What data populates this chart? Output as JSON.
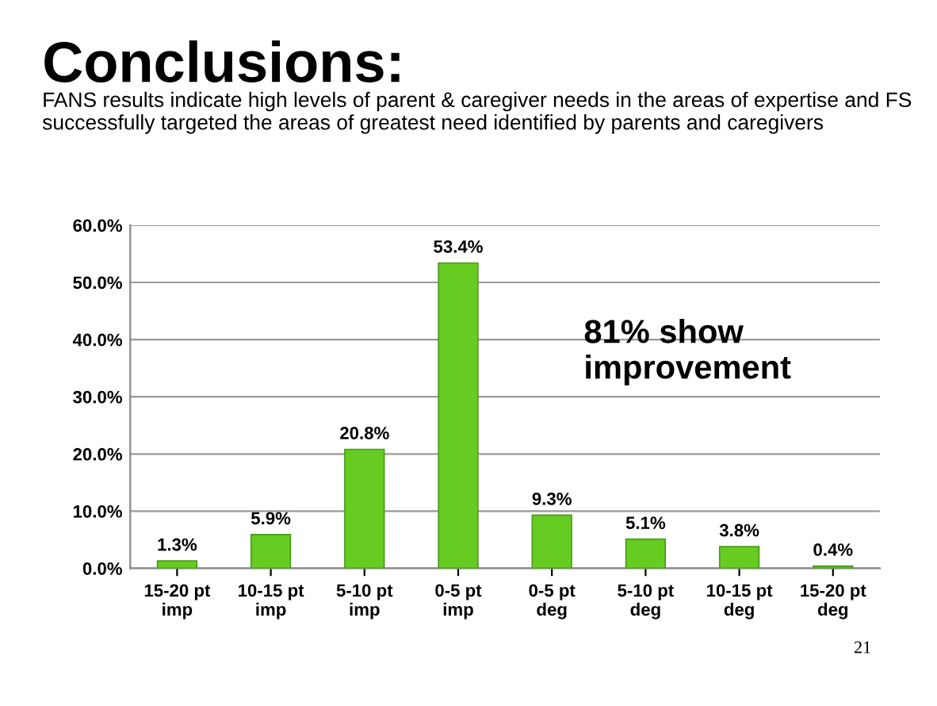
{
  "chart_data": {
    "type": "bar",
    "title": "Conclusions:",
    "subtitle": "FANS results indicate high levels of parent & caregiver needs in the areas of expertise and FS successfully targeted the areas of greatest need identified by parents and caregivers",
    "categories": [
      "15-20 pt\nimp",
      "10-15 pt\nimp",
      "5-10 pt\nimp",
      "0-5 pt\nimp",
      "0-5 pt\ndeg",
      "5-10 pt\ndeg",
      "10-15 pt\ndeg",
      "15-20 pt\ndeg"
    ],
    "values": [
      1.3,
      5.9,
      20.8,
      53.4,
      9.3,
      5.1,
      3.8,
      0.4
    ],
    "value_labels": [
      "1.3%",
      "5.9%",
      "20.8%",
      "53.4%",
      "9.3%",
      "5.1%",
      "3.8%",
      "0.4%"
    ],
    "color": "#66cc22",
    "ylim": [
      0,
      60
    ],
    "yticks": [
      {
        "value": 0,
        "label": "0.0%"
      },
      {
        "value": 10,
        "label": "10.0%"
      },
      {
        "value": 20,
        "label": "20.0%"
      },
      {
        "value": 30,
        "label": "30.0%"
      },
      {
        "value": 40,
        "label": "40.0%"
      },
      {
        "value": 50,
        "label": "50.0%"
      },
      {
        "value": 60,
        "label": "60.0%"
      }
    ],
    "grid": "y",
    "annotations": [
      "81% show improvement",
      "21"
    ]
  }
}
